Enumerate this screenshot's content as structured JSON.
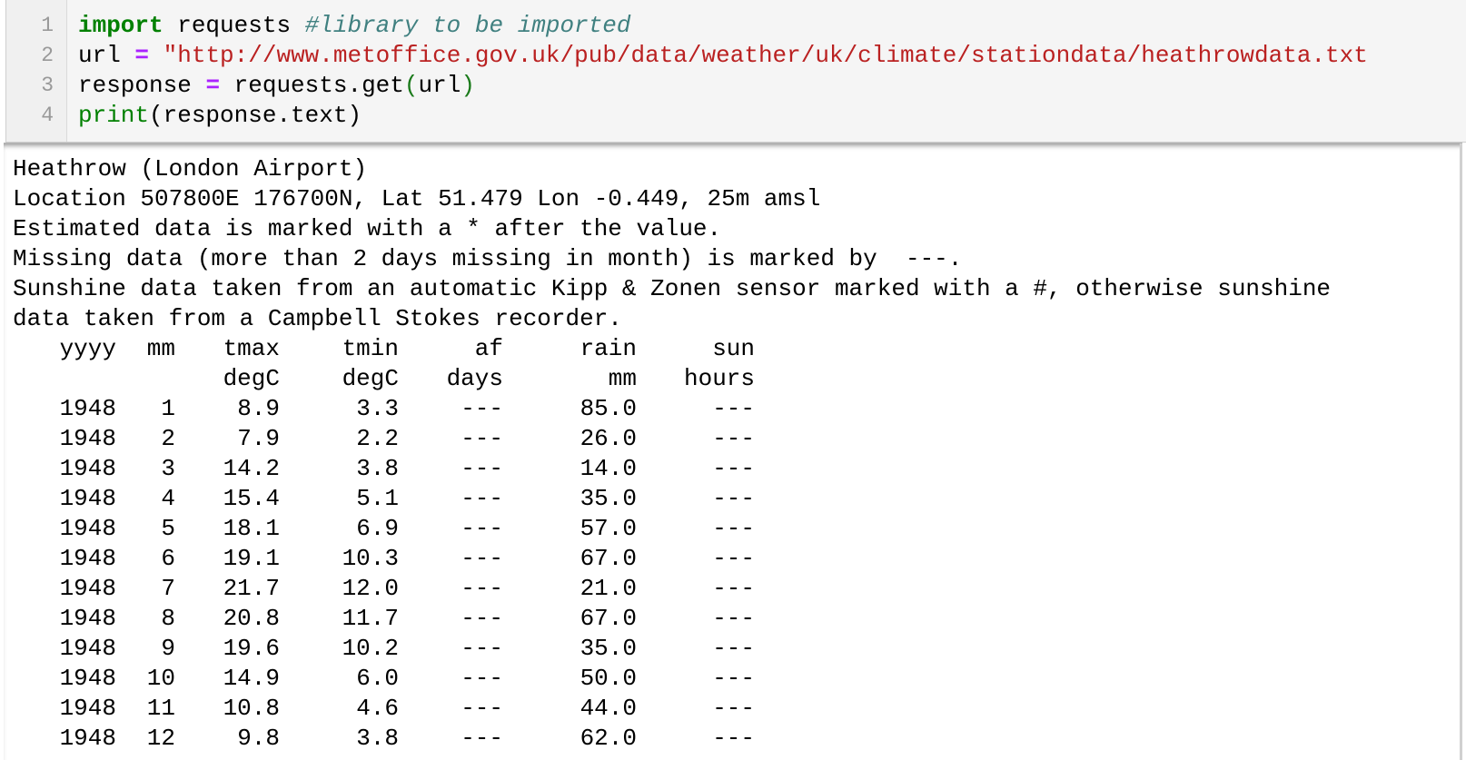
{
  "code_cell": {
    "line_numbers": [
      "1",
      "2",
      "3",
      "4"
    ],
    "line1": {
      "kw": "import",
      "rest": " requests ",
      "comment": "#library to be imported"
    },
    "line2": {
      "var": "url ",
      "op": "=",
      "sp": " ",
      "str": "\"http://www.metoffice.gov.uk/pub/data/weather/uk/climate/stationdata/heathrowdata.txt"
    },
    "line3": {
      "var": "response ",
      "op": "=",
      "mid": " requests.get",
      "lp": "(",
      "arg": "url",
      "rp": ")"
    },
    "line4": {
      "fn": "print",
      "rest": "(response.text)"
    }
  },
  "output": {
    "header_lines": [
      "Heathrow (London Airport)",
      "Location 507800E 176700N, Lat 51.479 Lon -0.449, 25m amsl",
      "Estimated data is marked with a * after the value.",
      "Missing data (more than 2 days missing in month) is marked by  ---.",
      "Sunshine data taken from an automatic Kipp & Zonen sensor marked with a #, otherwise sunshine",
      "data taken from a Campbell Stokes recorder."
    ],
    "table": {
      "columns": [
        "yyyy",
        "mm",
        "tmax",
        "tmin",
        "af",
        "rain",
        "sun"
      ],
      "units": [
        "",
        "",
        "degC",
        "degC",
        "days",
        "mm",
        "hours"
      ],
      "rows": [
        [
          "1948",
          "1",
          "8.9",
          "3.3",
          "---",
          "85.0",
          "---"
        ],
        [
          "1948",
          "2",
          "7.9",
          "2.2",
          "---",
          "26.0",
          "---"
        ],
        [
          "1948",
          "3",
          "14.2",
          "3.8",
          "---",
          "14.0",
          "---"
        ],
        [
          "1948",
          "4",
          "15.4",
          "5.1",
          "---",
          "35.0",
          "---"
        ],
        [
          "1948",
          "5",
          "18.1",
          "6.9",
          "---",
          "57.0",
          "---"
        ],
        [
          "1948",
          "6",
          "19.1",
          "10.3",
          "---",
          "67.0",
          "---"
        ],
        [
          "1948",
          "7",
          "21.7",
          "12.0",
          "---",
          "21.0",
          "---"
        ],
        [
          "1948",
          "8",
          "20.8",
          "11.7",
          "---",
          "67.0",
          "---"
        ],
        [
          "1948",
          "9",
          "19.6",
          "10.2",
          "---",
          "35.0",
          "---"
        ],
        [
          "1948",
          "10",
          "14.9",
          "6.0",
          "---",
          "50.0",
          "---"
        ],
        [
          "1948",
          "11",
          "10.8",
          "4.6",
          "---",
          "44.0",
          "---"
        ],
        [
          "1948",
          "12",
          "9.8",
          "3.8",
          "---",
          "62.0",
          "---"
        ]
      ]
    }
  }
}
